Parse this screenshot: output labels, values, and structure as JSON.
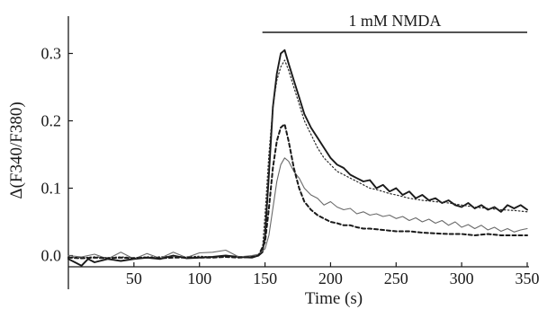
{
  "chart_data": {
    "type": "line",
    "title": "",
    "xlabel": "Time (s)",
    "ylabel": "Δ(F340/F380)",
    "xlim": [
      0,
      350
    ],
    "ylim": [
      -0.05,
      0.35
    ],
    "x_ticks": [
      50,
      100,
      150,
      200,
      250,
      300,
      350
    ],
    "y_ticks": [
      0.0,
      0.1,
      0.2,
      0.3
    ],
    "y_tick_labels": [
      "0.0",
      "0.1",
      "0.2",
      "0.3"
    ],
    "grid": false,
    "legend": "none",
    "annotation": {
      "text": "1 mM NMDA",
      "x_start": 148,
      "x_end": 350
    },
    "series": [
      {
        "style": "solid-thick",
        "color": "#1a1a1a",
        "x": [
          0,
          5,
          10,
          15,
          20,
          30,
          40,
          50,
          60,
          70,
          80,
          90,
          100,
          110,
          120,
          130,
          140,
          145,
          148,
          150,
          153,
          156,
          159,
          162,
          165,
          168,
          172,
          176,
          180,
          185,
          190,
          195,
          200,
          205,
          210,
          215,
          220,
          225,
          230,
          235,
          240,
          245,
          250,
          255,
          260,
          265,
          270,
          275,
          280,
          285,
          290,
          295,
          300,
          305,
          310,
          315,
          320,
          325,
          330,
          335,
          340,
          345,
          350
        ],
        "values": [
          -0.005,
          -0.01,
          -0.015,
          -0.005,
          -0.01,
          -0.005,
          -0.008,
          -0.005,
          -0.003,
          -0.005,
          0.0,
          -0.004,
          -0.003,
          -0.002,
          0.0,
          -0.002,
          -0.003,
          0.0,
          0.005,
          0.03,
          0.12,
          0.22,
          0.27,
          0.3,
          0.305,
          0.285,
          0.26,
          0.235,
          0.21,
          0.19,
          0.175,
          0.16,
          0.145,
          0.135,
          0.13,
          0.12,
          0.115,
          0.11,
          0.112,
          0.1,
          0.105,
          0.095,
          0.1,
          0.09,
          0.095,
          0.085,
          0.09,
          0.082,
          0.085,
          0.078,
          0.082,
          0.075,
          0.072,
          0.078,
          0.07,
          0.075,
          0.068,
          0.072,
          0.065,
          0.075,
          0.07,
          0.075,
          0.068
        ]
      },
      {
        "style": "dotted-thin",
        "color": "#2a2a2a",
        "x": [
          0,
          10,
          20,
          30,
          40,
          50,
          60,
          70,
          80,
          90,
          100,
          110,
          120,
          130,
          140,
          145,
          148,
          150,
          153,
          156,
          159,
          162,
          165,
          168,
          172,
          176,
          180,
          185,
          190,
          195,
          200,
          205,
          210,
          215,
          220,
          225,
          230,
          235,
          240,
          245,
          250,
          260,
          270,
          280,
          290,
          300,
          310,
          320,
          330,
          340,
          350
        ],
        "values": [
          -0.002,
          -0.003,
          -0.002,
          -0.003,
          -0.002,
          -0.003,
          -0.002,
          -0.002,
          -0.001,
          -0.002,
          -0.001,
          -0.002,
          -0.001,
          -0.002,
          -0.001,
          0.0,
          0.01,
          0.06,
          0.15,
          0.22,
          0.26,
          0.28,
          0.29,
          0.275,
          0.25,
          0.225,
          0.2,
          0.18,
          0.16,
          0.145,
          0.135,
          0.125,
          0.12,
          0.115,
          0.11,
          0.105,
          0.1,
          0.098,
          0.095,
          0.092,
          0.09,
          0.085,
          0.082,
          0.08,
          0.078,
          0.075,
          0.072,
          0.07,
          0.068,
          0.067,
          0.065
        ]
      },
      {
        "style": "solid-thin",
        "color": "#6a6a6a",
        "x": [
          0,
          10,
          20,
          30,
          40,
          50,
          60,
          70,
          80,
          90,
          100,
          110,
          120,
          130,
          140,
          145,
          150,
          153,
          156,
          159,
          162,
          165,
          168,
          172,
          176,
          180,
          185,
          190,
          195,
          200,
          205,
          210,
          215,
          220,
          225,
          230,
          235,
          240,
          245,
          250,
          255,
          260,
          265,
          270,
          275,
          280,
          285,
          290,
          295,
          300,
          305,
          310,
          315,
          320,
          325,
          330,
          335,
          340,
          345,
          350
        ],
        "values": [
          0.0,
          -0.002,
          0.002,
          -0.005,
          0.005,
          -0.005,
          0.003,
          -0.004,
          0.005,
          -0.003,
          0.004,
          0.005,
          0.008,
          -0.002,
          0.0,
          0.002,
          0.01,
          0.03,
          0.07,
          0.11,
          0.135,
          0.145,
          0.14,
          0.125,
          0.115,
          0.1,
          0.09,
          0.085,
          0.075,
          0.08,
          0.072,
          0.068,
          0.07,
          0.062,
          0.065,
          0.06,
          0.062,
          0.058,
          0.06,
          0.055,
          0.058,
          0.052,
          0.056,
          0.05,
          0.054,
          0.048,
          0.052,
          0.045,
          0.05,
          0.042,
          0.046,
          0.04,
          0.045,
          0.038,
          0.042,
          0.036,
          0.04,
          0.035,
          0.038,
          0.04
        ]
      },
      {
        "style": "dashed-thick",
        "color": "#1a1a1a",
        "x": [
          0,
          10,
          20,
          30,
          40,
          50,
          60,
          70,
          80,
          90,
          100,
          110,
          120,
          130,
          140,
          145,
          150,
          153,
          156,
          159,
          162,
          165,
          168,
          172,
          176,
          180,
          185,
          190,
          195,
          200,
          205,
          210,
          215,
          220,
          225,
          230,
          240,
          250,
          260,
          270,
          280,
          290,
          300,
          310,
          320,
          330,
          340,
          350
        ],
        "values": [
          -0.003,
          -0.004,
          -0.003,
          -0.004,
          -0.003,
          -0.004,
          -0.003,
          -0.004,
          -0.003,
          -0.003,
          -0.003,
          -0.003,
          -0.002,
          -0.003,
          -0.002,
          0.0,
          0.02,
          0.07,
          0.13,
          0.17,
          0.19,
          0.195,
          0.17,
          0.13,
          0.1,
          0.08,
          0.068,
          0.06,
          0.055,
          0.05,
          0.048,
          0.045,
          0.045,
          0.042,
          0.04,
          0.04,
          0.038,
          0.036,
          0.036,
          0.034,
          0.033,
          0.032,
          0.032,
          0.03,
          0.032,
          0.03,
          0.03,
          0.03
        ]
      }
    ]
  }
}
